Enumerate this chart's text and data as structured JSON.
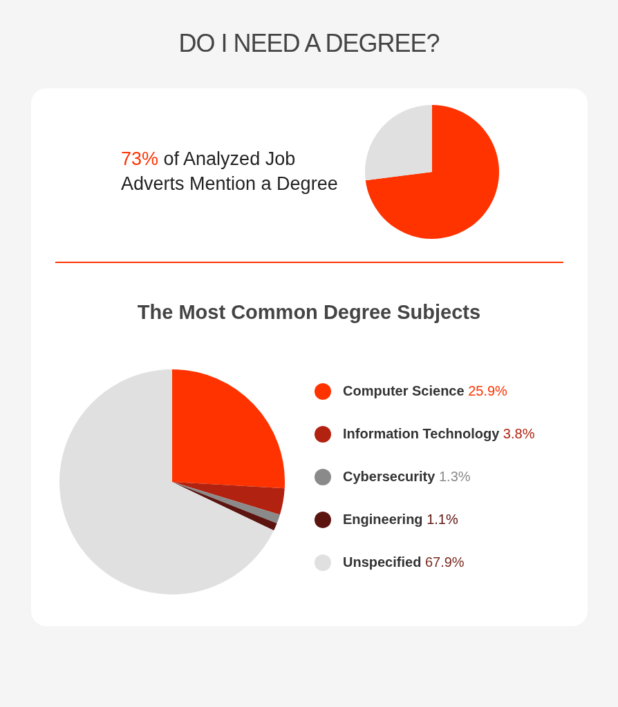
{
  "chart_data": [
    {
      "type": "pie",
      "title": "DO I NEED A DEGREE?",
      "annotations": [
        "73% of Analyzed Job Adverts Mention a Degree"
      ],
      "categories": [
        null,
        null
      ],
      "values": [
        73,
        27
      ],
      "colors": [
        "#ff3300",
        "#e0e0e0"
      ]
    },
    {
      "type": "pie",
      "title": "The Most Common Degree Subjects",
      "categories": [
        "Computer Science",
        "Information Technology",
        "Cybersecurity",
        "Engineering",
        "Unspecified"
      ],
      "values": [
        25.9,
        3.8,
        1.3,
        1.1,
        67.9
      ],
      "value_labels": [
        "25.9%",
        "3.8%",
        "1.3%",
        "1.1%",
        "67.9%"
      ],
      "colors": [
        "#ff3300",
        "#b22210",
        "#8a8a8a",
        "#5c1410",
        "#e0e0e0"
      ],
      "legend": "right"
    }
  ]
}
